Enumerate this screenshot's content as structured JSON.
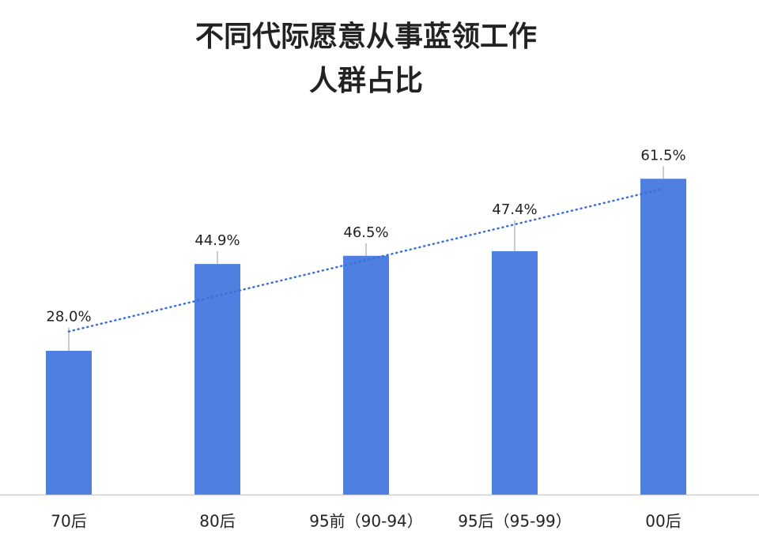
{
  "chart_data": {
    "type": "bar",
    "title": [
      "不同代际愿意从事蓝领工作",
      "人群占比"
    ],
    "categories": [
      "70后",
      "80后",
      "95前（90-94）",
      "95后（95-99）",
      "00后"
    ],
    "values": [
      28.0,
      44.9,
      46.5,
      47.4,
      61.5
    ],
    "value_labels": [
      "28.0%",
      "44.9%",
      "46.5%",
      "47.4%",
      "61.5%"
    ],
    "color": "#4f7fe0",
    "ylim": [
      0,
      70
    ],
    "trendline": true,
    "trendline_color": "#3a6fd8"
  }
}
